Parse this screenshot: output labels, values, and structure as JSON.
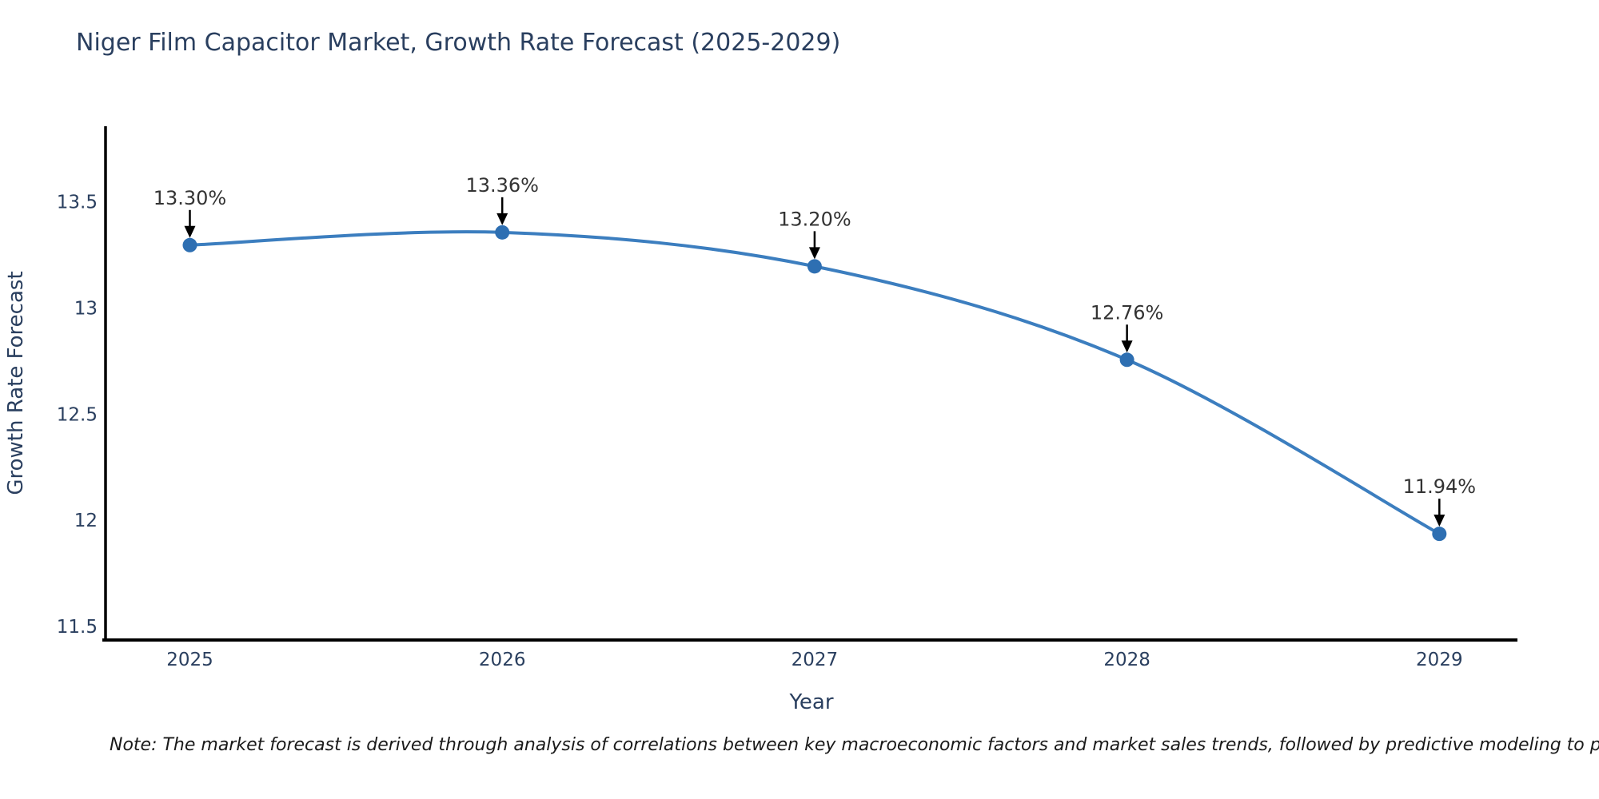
{
  "title": {
    "text": "Niger Film Capacitor Market, Growth Rate Forecast (2025-2029)",
    "color": "#2a3f5f"
  },
  "note": {
    "text": "Note: The market forecast is derived through analysis of correlations between key macroeconomic factors and market sales trends, followed by predictive modeling to project future sal"
  },
  "chart_data": {
    "type": "line",
    "title": "Niger Film Capacitor Market, Growth Rate Forecast (2025-2029)",
    "x": [
      2025,
      2026,
      2027,
      2028,
      2029
    ],
    "y": [
      13.3,
      13.36,
      13.2,
      12.76,
      11.94
    ],
    "point_labels": [
      "13.30%",
      "13.36%",
      "13.20%",
      "12.76%",
      "11.94%"
    ],
    "xlabel": "Year",
    "ylabel": "Growth Rate Forecast",
    "x_ticks": [
      "2025",
      "2026",
      "2027",
      "2028",
      "2029"
    ],
    "y_ticks": [
      "11.5",
      "12",
      "12.5",
      "13",
      "13.5"
    ],
    "xlim": [
      2024.73,
      2029.25
    ],
    "ylim": [
      11.44,
      13.86
    ],
    "grid": false,
    "legend_position": "none",
    "curve": "spline",
    "line_color": "#3c7ebf",
    "marker_color": "#2e6fb2",
    "annotation_arrow_color": "#000000",
    "axis_color": "#000000"
  }
}
